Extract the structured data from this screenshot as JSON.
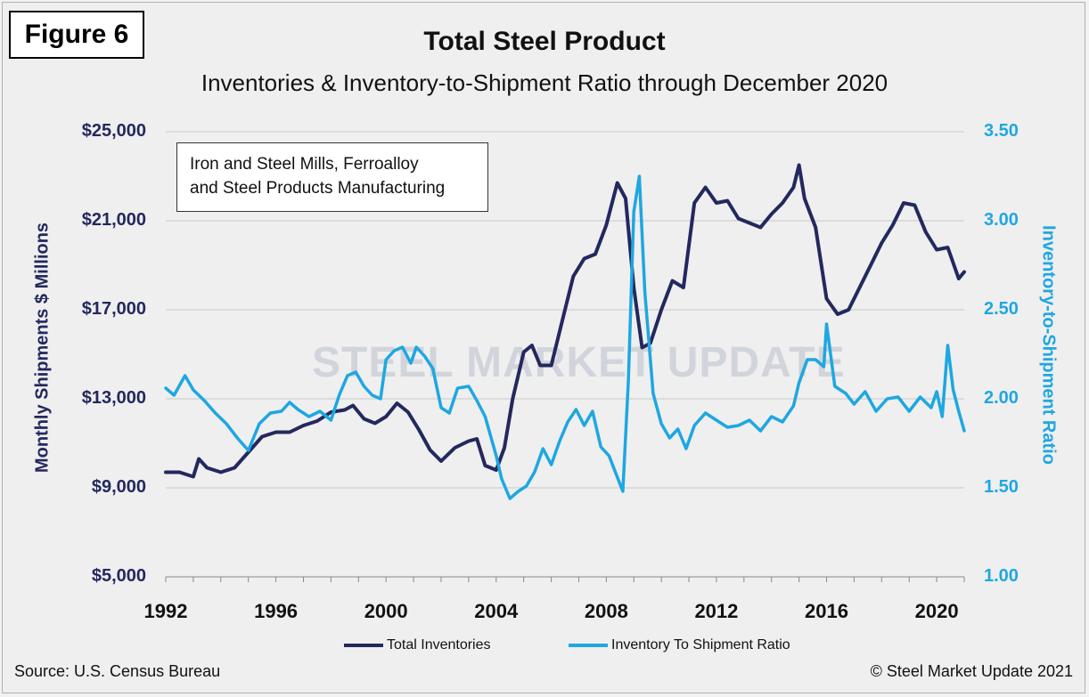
{
  "figure_label": "Figure 6",
  "source": "Source: U.S. Census Bureau",
  "copyright": "© Steel Market Update 2021",
  "watermark": "STEEL MARKET UPDATE",
  "colors": {
    "inventories": "#23285e",
    "ratio": "#1ea7e1",
    "grid": "#c8c8c8"
  },
  "chart_data": {
    "type": "line",
    "title": "Total Steel Product",
    "subtitle": "Inventories & Inventory-to-Shipment Ratio through December 2020",
    "annotation": "Iron and Steel Mills, Ferroalloy and Steel Products Manufacturing",
    "annotation_lines": [
      "Iron and Steel Mills, Ferroalloy",
      "and Steel Products Manufacturing"
    ],
    "ylabel_left": "Monthly Shipments $ Millions",
    "ylabel_right": "Inventory-to-Shipment Ratio",
    "ylim_left": [
      5000,
      25000
    ],
    "ylim_right": [
      1.0,
      3.5
    ],
    "xlim": [
      1992,
      2021
    ],
    "yticks_left": [
      "$5,000",
      "$9,000",
      "$13,000",
      "$17,000",
      "$21,000",
      "$25,000"
    ],
    "yticks_right": [
      "1.00",
      "1.50",
      "2.00",
      "2.50",
      "3.00",
      "3.50"
    ],
    "xticks": [
      "1992",
      "1996",
      "2000",
      "2004",
      "2008",
      "2012",
      "2016",
      "2020"
    ],
    "grid": "horizontal",
    "legend_position": "bottom",
    "series": [
      {
        "name": "Total Inventories",
        "axis": "left",
        "x": [
          1992.0,
          1992.5,
          1993.0,
          1993.2,
          1993.5,
          1994.0,
          1994.5,
          1995.0,
          1995.5,
          1996.0,
          1996.5,
          1997.0,
          1997.5,
          1998.0,
          1998.5,
          1998.8,
          1999.2,
          1999.6,
          2000.0,
          2000.4,
          2000.8,
          2001.2,
          2001.6,
          2002.0,
          2002.5,
          2003.0,
          2003.3,
          2003.6,
          2004.0,
          2004.3,
          2004.6,
          2005.0,
          2005.3,
          2005.6,
          2006.0,
          2006.4,
          2006.8,
          2007.2,
          2007.6,
          2008.0,
          2008.4,
          2008.7,
          2009.0,
          2009.3,
          2009.6,
          2010.0,
          2010.4,
          2010.8,
          2011.2,
          2011.6,
          2012.0,
          2012.4,
          2012.8,
          2013.2,
          2013.6,
          2014.0,
          2014.4,
          2014.8,
          2015.0,
          2015.2,
          2015.6,
          2016.0,
          2016.4,
          2016.8,
          2017.2,
          2017.6,
          2018.0,
          2018.4,
          2018.8,
          2019.2,
          2019.6,
          2020.0,
          2020.4,
          2020.8,
          2021.0
        ],
        "values": [
          9700,
          9700,
          9500,
          10300,
          9900,
          9700,
          9900,
          10600,
          11300,
          11500,
          11500,
          11800,
          12000,
          12400,
          12500,
          12700,
          12100,
          11900,
          12200,
          12800,
          12400,
          11600,
          10700,
          10200,
          10800,
          11100,
          11200,
          10000,
          9800,
          10800,
          13000,
          15100,
          15400,
          14500,
          14500,
          16500,
          18500,
          19300,
          19500,
          20800,
          22700,
          22000,
          18000,
          15300,
          15500,
          17000,
          18300,
          18000,
          21800,
          22500,
          21800,
          21900,
          21100,
          20900,
          20700,
          21300,
          21800,
          22500,
          23500,
          22000,
          20700,
          17500,
          16800,
          17000,
          18000,
          19000,
          20000,
          20800,
          21800,
          21700,
          20500,
          19700,
          19800,
          18400,
          18700
        ]
      },
      {
        "name": "Inventory To Shipment Ratio",
        "axis": "right",
        "x": [
          1992.0,
          1992.3,
          1992.7,
          1993.0,
          1993.4,
          1993.8,
          1994.2,
          1994.6,
          1995.0,
          1995.4,
          1995.8,
          1996.2,
          1996.5,
          1996.8,
          1997.2,
          1997.6,
          1998.0,
          1998.3,
          1998.6,
          1998.9,
          1999.2,
          1999.5,
          1999.8,
          2000.0,
          2000.3,
          2000.6,
          2000.9,
          2001.1,
          2001.4,
          2001.7,
          2002.0,
          2002.3,
          2002.6,
          2003.0,
          2003.3,
          2003.6,
          2004.0,
          2004.2,
          2004.5,
          2004.8,
          2005.1,
          2005.4,
          2005.7,
          2006.0,
          2006.3,
          2006.6,
          2006.9,
          2007.2,
          2007.5,
          2007.8,
          2008.1,
          2008.4,
          2008.6,
          2008.8,
          2009.0,
          2009.2,
          2009.4,
          2009.7,
          2010.0,
          2010.3,
          2010.6,
          2010.9,
          2011.2,
          2011.6,
          2012.0,
          2012.4,
          2012.8,
          2013.2,
          2013.6,
          2014.0,
          2014.4,
          2014.8,
          2015.0,
          2015.3,
          2015.6,
          2015.9,
          2016.0,
          2016.3,
          2016.7,
          2017.0,
          2017.4,
          2017.8,
          2018.2,
          2018.6,
          2019.0,
          2019.4,
          2019.8,
          2020.0,
          2020.2,
          2020.4,
          2020.6,
          2020.8,
          2021.0
        ],
        "values": [
          2.06,
          2.02,
          2.13,
          2.05,
          1.99,
          1.92,
          1.86,
          1.78,
          1.71,
          1.86,
          1.92,
          1.93,
          1.98,
          1.94,
          1.9,
          1.93,
          1.88,
          2.02,
          2.13,
          2.15,
          2.07,
          2.02,
          2.0,
          2.22,
          2.27,
          2.29,
          2.2,
          2.29,
          2.24,
          2.17,
          1.95,
          1.92,
          2.06,
          2.07,
          1.99,
          1.9,
          1.68,
          1.55,
          1.44,
          1.48,
          1.51,
          1.59,
          1.72,
          1.63,
          1.76,
          1.87,
          1.94,
          1.85,
          1.93,
          1.73,
          1.68,
          1.56,
          1.48,
          2.1,
          3.05,
          3.25,
          2.6,
          2.03,
          1.86,
          1.78,
          1.83,
          1.72,
          1.85,
          1.92,
          1.88,
          1.84,
          1.85,
          1.88,
          1.82,
          1.9,
          1.87,
          1.96,
          2.09,
          2.22,
          2.22,
          2.18,
          2.42,
          2.07,
          2.03,
          1.97,
          2.04,
          1.93,
          2.0,
          2.01,
          1.93,
          2.01,
          1.95,
          2.04,
          1.9,
          2.3,
          2.05,
          1.93,
          1.82
        ]
      }
    ]
  }
}
